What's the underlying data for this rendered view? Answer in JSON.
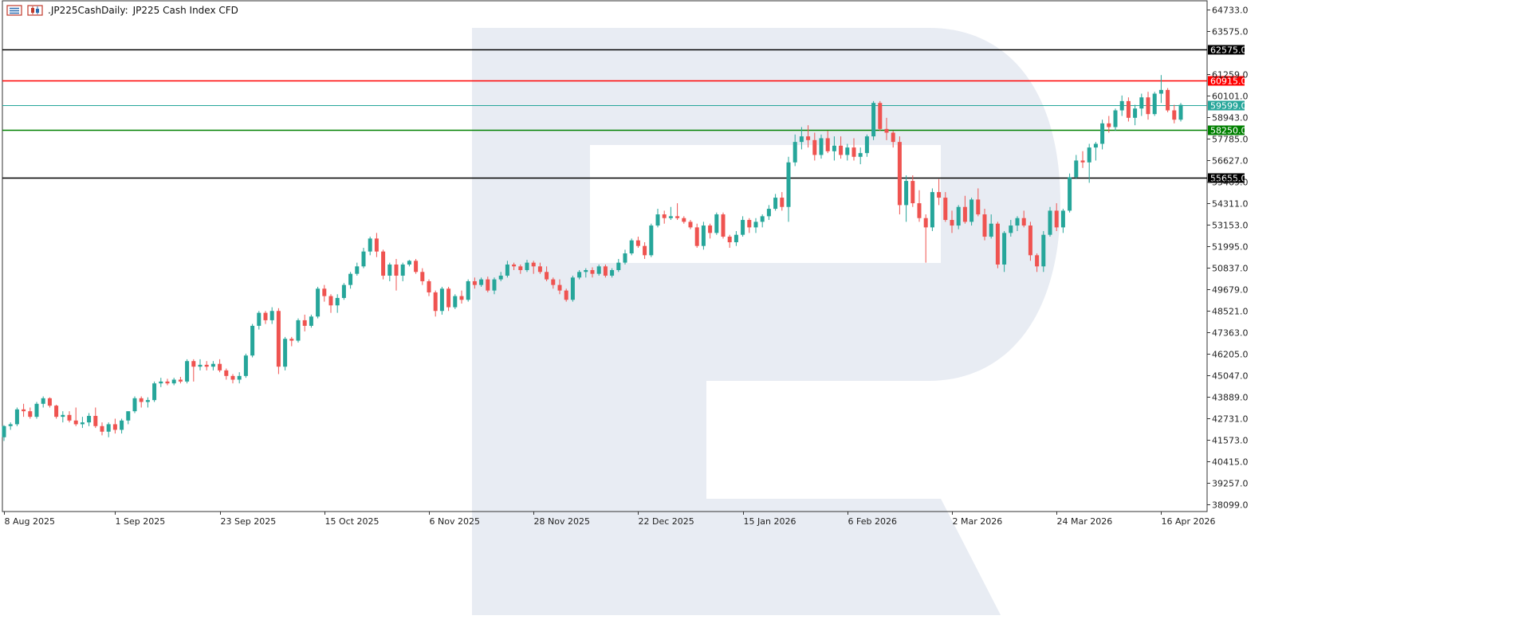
{
  "header": {
    "symbol": ".JP225Cash",
    "timeframe": "Daily:",
    "description": "JP225 Cash Index CFD",
    "icons": [
      "chart-list-icon",
      "candle-chart-icon"
    ]
  },
  "colors": {
    "background": "#ffffff",
    "up_candle": "#26a69a",
    "down_candle": "#ef5350",
    "axis": "#333333",
    "watermark": "#e8ecf3",
    "resistance_black": "#000000",
    "resistance_red": "#ff0000",
    "current_price": "#26a69a",
    "support_green": "#008000"
  },
  "chart_data": {
    "type": "candlestick",
    "title": ".JP225Cash, Daily:  JP225 Cash Index CFD",
    "y_range": [
      37700,
      65200
    ],
    "y_ticks": [
      64733.0,
      63575.0,
      61259.0,
      60101.0,
      58943.0,
      57785.0,
      56627.0,
      55469.0,
      54311.0,
      53153.0,
      51995.0,
      50837.0,
      49679.0,
      48521.0,
      47363.0,
      46205.0,
      45047.0,
      43889.0,
      42731.0,
      41573.0,
      40415.0,
      39257.0,
      38099.0
    ],
    "x_labels": [
      "8 Aug 2025",
      "1 Sep 2025",
      "23 Sep 2025",
      "15 Oct 2025",
      "6 Nov 2025",
      "28 Nov 2025",
      "22 Dec 2025",
      "15 Jan 2026",
      "6 Feb 2026",
      "2 Mar 2026",
      "24 Mar 2026",
      "16 Apr 2026"
    ],
    "x_label_positions": [
      0,
      17,
      33,
      49,
      65,
      81,
      97,
      113,
      129,
      145,
      161,
      177
    ],
    "levels": [
      {
        "label": "62575.0",
        "value": 62575.0,
        "color": "#000000"
      },
      {
        "label": "60915.0",
        "value": 60915.0,
        "color": "#ff0000"
      },
      {
        "label": "59599.0",
        "value": 59599.0,
        "color": "#26a69a"
      },
      {
        "label": "58250.0",
        "value": 58250.0,
        "color": "#008000"
      },
      {
        "label": "55655.0",
        "value": 55655.0,
        "color": "#000000"
      }
    ],
    "ohlc": [
      [
        41700,
        42350,
        41500,
        42300
      ],
      [
        42300,
        42500,
        42100,
        42400
      ],
      [
        42400,
        43300,
        42300,
        43200
      ],
      [
        43200,
        43500,
        42800,
        43100
      ],
      [
        43100,
        43300,
        42700,
        42800
      ],
      [
        42800,
        43600,
        42700,
        43500
      ],
      [
        43500,
        43900,
        43300,
        43800
      ],
      [
        43800,
        43850,
        43300,
        43400
      ],
      [
        43400,
        43450,
        42700,
        42800
      ],
      [
        42800,
        43100,
        42500,
        42900
      ],
      [
        42900,
        43100,
        42500,
        42600
      ],
      [
        42600,
        43300,
        42300,
        42400
      ],
      [
        42400,
        42800,
        42200,
        42500
      ],
      [
        42500,
        43000,
        42300,
        42850
      ],
      [
        42850,
        43300,
        42200,
        42300
      ],
      [
        42300,
        42500,
        41800,
        42000
      ],
      [
        42000,
        42500,
        41700,
        42400
      ],
      [
        42400,
        42700,
        41900,
        42100
      ],
      [
        42100,
        42700,
        41900,
        42600
      ],
      [
        42600,
        43100,
        42400,
        43100
      ],
      [
        43100,
        43900,
        43000,
        43800
      ],
      [
        43800,
        43900,
        43300,
        43600
      ],
      [
        43600,
        43850,
        43300,
        43700
      ],
      [
        43700,
        44700,
        43600,
        44600
      ],
      [
        44600,
        44900,
        44400,
        44700
      ],
      [
        44700,
        44850,
        44500,
        44600
      ],
      [
        44600,
        44900,
        44500,
        44800
      ],
      [
        44800,
        44950,
        44600,
        44700
      ],
      [
        44700,
        45900,
        44600,
        45800
      ],
      [
        45800,
        45900,
        44700,
        45500
      ],
      [
        45500,
        45900,
        45300,
        45600
      ],
      [
        45600,
        45800,
        45300,
        45500
      ],
      [
        45500,
        45800,
        45300,
        45650
      ],
      [
        45650,
        45900,
        45200,
        45300
      ],
      [
        45300,
        45400,
        44800,
        45000
      ],
      [
        45000,
        45100,
        44600,
        44800
      ],
      [
        44800,
        45200,
        44600,
        45000
      ],
      [
        45000,
        46200,
        44900,
        46100
      ],
      [
        46100,
        47800,
        46000,
        47700
      ],
      [
        47700,
        48500,
        47500,
        48400
      ],
      [
        48400,
        48500,
        47800,
        48000
      ],
      [
        48000,
        48700,
        47800,
        48500
      ],
      [
        48500,
        48650,
        45100,
        45500
      ],
      [
        45500,
        47100,
        45300,
        47000
      ],
      [
        47000,
        47100,
        46600,
        46900
      ],
      [
        46900,
        48100,
        46800,
        48000
      ],
      [
        48000,
        48300,
        47400,
        47700
      ],
      [
        47700,
        48300,
        47600,
        48200
      ],
      [
        48200,
        49800,
        48100,
        49700
      ],
      [
        49700,
        49900,
        49000,
        49300
      ],
      [
        49300,
        49400,
        48400,
        48800
      ],
      [
        48800,
        49400,
        48400,
        49200
      ],
      [
        49200,
        50000,
        49100,
        49900
      ],
      [
        49900,
        50600,
        49700,
        50500
      ],
      [
        50500,
        51100,
        50400,
        50900
      ],
      [
        50900,
        51900,
        50800,
        51700
      ],
      [
        51700,
        52500,
        51500,
        52400
      ],
      [
        52400,
        52700,
        51400,
        51700
      ],
      [
        51700,
        51800,
        50200,
        50400
      ],
      [
        50400,
        51100,
        50100,
        51000
      ],
      [
        51000,
        51300,
        49600,
        50400
      ],
      [
        50400,
        51100,
        50100,
        51000
      ],
      [
        51000,
        51250,
        50900,
        51200
      ],
      [
        51200,
        51300,
        50500,
        50600
      ],
      [
        50600,
        50800,
        49900,
        50100
      ],
      [
        50100,
        50200,
        49300,
        49500
      ],
      [
        49500,
        49600,
        48200,
        48500
      ],
      [
        48500,
        49800,
        48300,
        49700
      ],
      [
        49700,
        49800,
        48500,
        48700
      ],
      [
        48700,
        49400,
        48600,
        49300
      ],
      [
        49300,
        49600,
        48900,
        49100
      ],
      [
        49100,
        50200,
        49000,
        50100
      ],
      [
        50100,
        50300,
        49700,
        49900
      ],
      [
        49900,
        50300,
        49800,
        50200
      ],
      [
        50200,
        50350,
        49500,
        49600
      ],
      [
        49600,
        50300,
        49400,
        50200
      ],
      [
        50200,
        50600,
        50100,
        50400
      ],
      [
        50400,
        51200,
        50300,
        51000
      ],
      [
        51000,
        51100,
        50700,
        50900
      ],
      [
        50900,
        51000,
        50500,
        50700
      ],
      [
        50700,
        51250,
        50600,
        51100
      ],
      [
        51100,
        51200,
        50500,
        50900
      ],
      [
        50900,
        51100,
        50500,
        50600
      ],
      [
        50600,
        50900,
        50100,
        50200
      ],
      [
        50200,
        50300,
        49700,
        49900
      ],
      [
        49900,
        50200,
        49400,
        49600
      ],
      [
        49600,
        49700,
        49000,
        49100
      ],
      [
        49100,
        50400,
        49000,
        50300
      ],
      [
        50300,
        50700,
        50200,
        50600
      ],
      [
        50600,
        50800,
        50300,
        50700
      ],
      [
        50700,
        50850,
        50300,
        50500
      ],
      [
        50500,
        51000,
        50400,
        50900
      ],
      [
        50900,
        51000,
        50300,
        50400
      ],
      [
        50400,
        50800,
        50300,
        50700
      ],
      [
        50700,
        51300,
        50600,
        51100
      ],
      [
        51100,
        51800,
        51000,
        51600
      ],
      [
        51600,
        52400,
        51500,
        52300
      ],
      [
        52300,
        52500,
        51900,
        52000
      ],
      [
        52000,
        52200,
        51300,
        51500
      ],
      [
        51500,
        53200,
        51400,
        53100
      ],
      [
        53100,
        54000,
        53000,
        53700
      ],
      [
        53700,
        53900,
        53200,
        53500
      ],
      [
        53500,
        54100,
        53400,
        53600
      ],
      [
        53600,
        54300,
        53400,
        53500
      ],
      [
        53500,
        53600,
        53200,
        53300
      ],
      [
        53300,
        53400,
        52900,
        53000
      ],
      [
        53000,
        53200,
        51900,
        52000
      ],
      [
        52000,
        53300,
        51800,
        53100
      ],
      [
        53100,
        53200,
        52400,
        52700
      ],
      [
        52700,
        53800,
        52600,
        53700
      ],
      [
        53700,
        53800,
        52400,
        52500
      ],
      [
        52500,
        52600,
        51900,
        52200
      ],
      [
        52200,
        52800,
        52000,
        52600
      ],
      [
        52600,
        53600,
        52500,
        53400
      ],
      [
        53400,
        53500,
        52700,
        53000
      ],
      [
        53000,
        53500,
        52700,
        53300
      ],
      [
        53300,
        53700,
        53000,
        53600
      ],
      [
        53600,
        54200,
        53400,
        54000
      ],
      [
        54000,
        54800,
        53900,
        54600
      ],
      [
        54600,
        54900,
        53900,
        54100
      ],
      [
        54100,
        56800,
        53300,
        56500
      ],
      [
        56500,
        58000,
        56300,
        57600
      ],
      [
        57600,
        58400,
        57200,
        57900
      ],
      [
        57900,
        58500,
        57300,
        57700
      ],
      [
        57700,
        58100,
        56600,
        56900
      ],
      [
        56900,
        58000,
        56700,
        57800
      ],
      [
        57800,
        58200,
        57000,
        57100
      ],
      [
        57100,
        57900,
        56600,
        57400
      ],
      [
        57400,
        57900,
        56700,
        56900
      ],
      [
        56900,
        57500,
        56600,
        57300
      ],
      [
        57300,
        57800,
        56600,
        56800
      ],
      [
        56800,
        57300,
        56400,
        57000
      ],
      [
        57000,
        58000,
        56800,
        57900
      ],
      [
        57900,
        59800,
        57700,
        59700
      ],
      [
        59700,
        59800,
        58200,
        58300
      ],
      [
        58300,
        58900,
        57700,
        58100
      ],
      [
        58100,
        58200,
        57300,
        57600
      ],
      [
        57600,
        57900,
        53700,
        54200
      ],
      [
        54200,
        55800,
        53300,
        55500
      ],
      [
        55500,
        55800,
        54100,
        54300
      ],
      [
        54300,
        55000,
        53300,
        53500
      ],
      [
        53500,
        53700,
        51100,
        53000
      ],
      [
        53000,
        55100,
        52800,
        54900
      ],
      [
        54900,
        55600,
        54200,
        54600
      ],
      [
        54600,
        54900,
        53300,
        53400
      ],
      [
        53400,
        53900,
        52700,
        53100
      ],
      [
        53100,
        54200,
        52900,
        54100
      ],
      [
        54100,
        54700,
        53200,
        53300
      ],
      [
        53300,
        54600,
        53100,
        54500
      ],
      [
        54500,
        55100,
        53600,
        53700
      ],
      [
        53700,
        54000,
        52300,
        52500
      ],
      [
        52500,
        53700,
        52400,
        53200
      ],
      [
        53200,
        53300,
        50800,
        51000
      ],
      [
        51000,
        52800,
        50600,
        52700
      ],
      [
        52700,
        53400,
        52500,
        53100
      ],
      [
        53100,
        53600,
        52800,
        53500
      ],
      [
        53500,
        53900,
        53000,
        53100
      ],
      [
        53100,
        53300,
        51200,
        51500
      ],
      [
        51500,
        51600,
        50600,
        50900
      ],
      [
        50900,
        52800,
        50600,
        52600
      ],
      [
        52600,
        54100,
        52500,
        53900
      ],
      [
        53900,
        54300,
        52800,
        53000
      ],
      [
        53000,
        54000,
        52700,
        53900
      ],
      [
        53900,
        55900,
        53800,
        55700
      ],
      [
        55700,
        56900,
        55600,
        56600
      ],
      [
        56600,
        57100,
        56200,
        56500
      ],
      [
        56500,
        57500,
        55400,
        57300
      ],
      [
        57300,
        57600,
        56600,
        57500
      ],
      [
        57500,
        58800,
        57200,
        58600
      ],
      [
        58600,
        59000,
        58100,
        58400
      ],
      [
        58400,
        59400,
        58200,
        59300
      ],
      [
        59300,
        60100,
        59000,
        59800
      ],
      [
        59800,
        60000,
        58700,
        58900
      ],
      [
        58900,
        59600,
        58500,
        59400
      ],
      [
        59400,
        60200,
        59000,
        60000
      ],
      [
        60000,
        60300,
        58800,
        59100
      ],
      [
        59100,
        60300,
        59000,
        60200
      ],
      [
        60200,
        61200,
        59700,
        60400
      ],
      [
        60400,
        60500,
        59200,
        59300
      ],
      [
        59300,
        59600,
        58600,
        58800
      ],
      [
        58800,
        59700,
        58700,
        59599
      ]
    ]
  }
}
